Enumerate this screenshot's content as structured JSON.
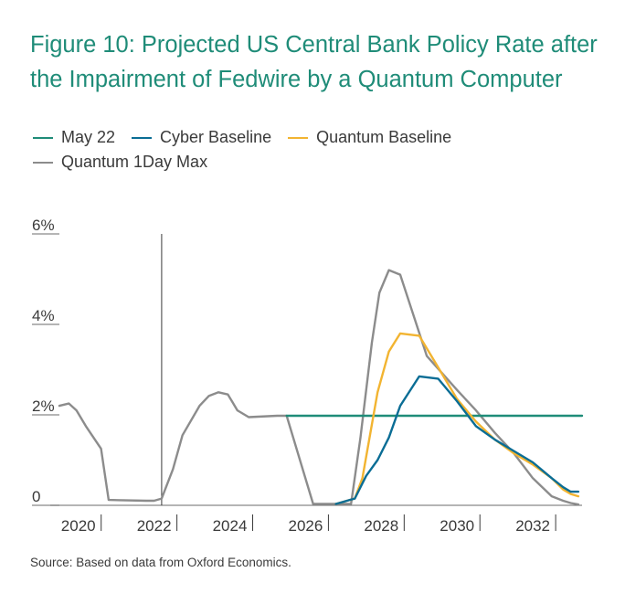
{
  "title": "Figure 10: Projected US Central Bank Policy Rate after the Impairment of Fedwire by a Quantum Computer",
  "source": "Source: Based on data from Oxford Economics.",
  "chart_data": {
    "type": "line",
    "title": "Figure 10: Projected US Central Bank Policy Rate after the Impairment of Fedwire by a Quantum Computer",
    "xlabel": "",
    "ylabel": "",
    "xlim": [
      2019.5,
      2033.3
    ],
    "ylim": [
      0,
      6
    ],
    "yticks": [
      0,
      2,
      4,
      6
    ],
    "ytick_labels": [
      "0",
      "2%",
      "4%",
      "6%"
    ],
    "xticks": [
      2020,
      2022,
      2024,
      2026,
      2028,
      2030,
      2032
    ],
    "xtick_labels": [
      "2020",
      "2022",
      "2024",
      "2026",
      "2028",
      "2030",
      "2032"
    ],
    "vline_at": 2022.2,
    "series": [
      {
        "name": "Quantum 1Day Max",
        "color": "#8c8c8c",
        "x": [
          2019.5,
          2019.75,
          2019.95,
          2020.2,
          2020.6,
          2020.8,
          2021.8,
          2022.0,
          2022.2,
          2022.5,
          2022.75,
          2023.2,
          2023.45,
          2023.7,
          2023.95,
          2024.2,
          2024.5,
          2025.25,
          2025.5,
          2026.2,
          2026.8,
          2027.2,
          2027.45,
          2027.75,
          2027.95,
          2028.2,
          2028.5,
          2029.2,
          2030.0,
          2030.5,
          2031.0,
          2031.5,
          2032.0,
          2032.5,
          2032.8,
          2033.0,
          2033.2
        ],
        "y": [
          2.2,
          2.25,
          2.1,
          1.75,
          1.25,
          0.12,
          0.1,
          0.1,
          0.15,
          0.8,
          1.55,
          2.2,
          2.42,
          2.5,
          2.45,
          2.1,
          1.95,
          1.98,
          1.98,
          0.03,
          0.03,
          0.03,
          1.5,
          3.6,
          4.7,
          5.2,
          5.1,
          3.3,
          2.55,
          2.1,
          1.6,
          1.15,
          0.6,
          0.2,
          0.1,
          0.05,
          0.02
        ]
      },
      {
        "name": "May 22",
        "color": "#1f8c78",
        "x": [
          2025.5,
          2033.3
        ],
        "y": [
          1.98,
          1.98
        ]
      },
      {
        "name": "Quantum Baseline",
        "color": "#f2b431",
        "x": [
          2026.8,
          2027.3,
          2027.5,
          2027.9,
          2028.2,
          2028.5,
          2029.0,
          2029.5,
          2030.0,
          2030.5,
          2031.0,
          2031.5,
          2032.0,
          2032.5,
          2032.8,
          2033.0,
          2033.2
        ],
        "y": [
          0.03,
          0.15,
          0.6,
          2.5,
          3.4,
          3.8,
          3.75,
          3.05,
          2.35,
          1.85,
          1.45,
          1.15,
          0.9,
          0.6,
          0.35,
          0.25,
          0.2
        ]
      },
      {
        "name": "Cyber Baseline",
        "color": "#0a6d95",
        "x": [
          2026.8,
          2027.3,
          2027.6,
          2027.9,
          2028.2,
          2028.5,
          2029.0,
          2029.5,
          2030.0,
          2030.5,
          2031.0,
          2031.5,
          2032.0,
          2032.5,
          2032.8,
          2033.0,
          2033.2
        ],
        "y": [
          0.03,
          0.15,
          0.65,
          1.0,
          1.5,
          2.2,
          2.85,
          2.8,
          2.3,
          1.75,
          1.45,
          1.2,
          0.95,
          0.6,
          0.4,
          0.3,
          0.3
        ]
      }
    ],
    "legend": [
      {
        "label": "May 22",
        "color": "#1f8c78"
      },
      {
        "label": "Cyber Baseline",
        "color": "#0a6d95"
      },
      {
        "label": "Quantum Baseline",
        "color": "#f2b431"
      },
      {
        "label": "Quantum 1Day Max",
        "color": "#8c8c8c"
      }
    ],
    "legend_position": "top-left"
  }
}
